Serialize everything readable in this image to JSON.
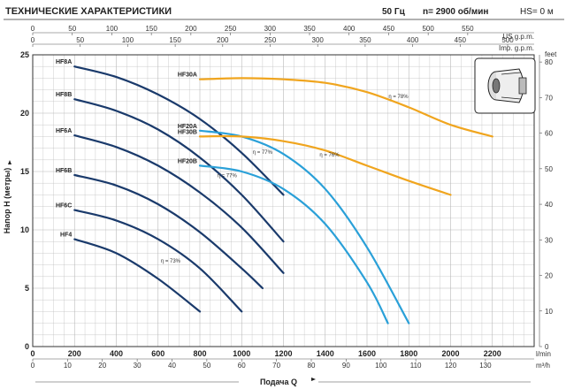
{
  "header": {
    "title": "ТЕХНИЧЕСКИЕ ХАРАКТЕРИСТИКИ",
    "frequency": "50 Гц",
    "speed": "n= 2900 об/мин",
    "hs": "HS= 0 м"
  },
  "colors": {
    "hf_series": "#1a3a6b",
    "hf20_series": "#2aa0d8",
    "hf30_series": "#f0a51e",
    "grid": "#b8b8b8",
    "header_rule": "#666666"
  },
  "chart_data": {
    "type": "line",
    "xlabel": "Подача Q",
    "ylabel": "Напор H (метры)",
    "x_unit_main": "l/min",
    "x_unit_m3h": "m³/h",
    "x_unit_us": "US g.p.m.",
    "x_unit_imp": "Imp. g.p.m.",
    "y_unit_right": "feet",
    "xlim": [
      0,
      2400
    ],
    "ylim": [
      0,
      25
    ],
    "grid": true,
    "x_ticks_lmin": [
      0,
      200,
      400,
      600,
      800,
      1000,
      1200,
      1400,
      1600,
      1800,
      2000,
      2200
    ],
    "x_ticks_m3h": [
      0,
      10,
      20,
      30,
      40,
      50,
      60,
      70,
      80,
      90,
      100,
      110,
      120,
      130
    ],
    "x_ticks_us": [
      0,
      50,
      100,
      150,
      200,
      250,
      300,
      350,
      400,
      450,
      500,
      550
    ],
    "x_ticks_imp": [
      0,
      50,
      100,
      150,
      200,
      250,
      300,
      350,
      400,
      450,
      500
    ],
    "y_ticks_m": [
      0,
      5,
      10,
      15,
      20,
      25
    ],
    "y_ticks_ft": [
      0,
      10,
      20,
      30,
      40,
      50,
      60,
      70,
      80
    ],
    "series": [
      {
        "name": "HF8A",
        "color_key": "hf_series",
        "x": [
          200,
          400,
          600,
          800,
          1000,
          1200
        ],
        "y": [
          24,
          23.1,
          21.6,
          19.5,
          16.6,
          13
        ]
      },
      {
        "name": "HF8B",
        "color_key": "hf_series",
        "x": [
          200,
          400,
          600,
          800,
          1000,
          1200
        ],
        "y": [
          21.2,
          20.2,
          18.6,
          16.2,
          13,
          9
        ]
      },
      {
        "name": "HF6A",
        "color_key": "hf_series",
        "x": [
          200,
          400,
          600,
          800,
          1000,
          1200
        ],
        "y": [
          18.1,
          17.1,
          15.5,
          13.2,
          10.2,
          6.3
        ]
      },
      {
        "name": "HF6B",
        "color_key": "hf_series",
        "x": [
          200,
          400,
          600,
          800,
          1000,
          1100
        ],
        "y": [
          14.7,
          13.8,
          12.2,
          9.8,
          6.7,
          5
        ]
      },
      {
        "name": "HF6C",
        "color_key": "hf_series",
        "x": [
          200,
          400,
          600,
          800,
          1000
        ],
        "y": [
          11.7,
          10.8,
          9.2,
          6.7,
          3
        ]
      },
      {
        "name": "HF4",
        "color_key": "hf_series",
        "x": [
          200,
          400,
          600,
          800
        ],
        "y": [
          9.2,
          8,
          5.8,
          3
        ]
      },
      {
        "name": "HF20A",
        "color_key": "hf20_series",
        "x": [
          800,
          1000,
          1200,
          1400,
          1600,
          1800
        ],
        "y": [
          18.5,
          18,
          16.5,
          13.5,
          8.5,
          2
        ]
      },
      {
        "name": "HF20B",
        "color_key": "hf20_series",
        "x": [
          800,
          1000,
          1200,
          1400,
          1600,
          1700
        ],
        "y": [
          15.5,
          15,
          13.5,
          10.5,
          5.5,
          2
        ]
      },
      {
        "name": "HF30A",
        "color_key": "hf30_series",
        "x": [
          800,
          1000,
          1200,
          1400,
          1600,
          1800,
          2000,
          2200
        ],
        "y": [
          22.9,
          23,
          22.9,
          22.6,
          21.8,
          20.5,
          19,
          18
        ]
      },
      {
        "name": "HF30B",
        "color_key": "hf30_series",
        "x": [
          800,
          1000,
          1200,
          1400,
          1600,
          1800,
          2000
        ],
        "y": [
          18,
          18,
          17.6,
          16.8,
          15.5,
          14.2,
          13
        ]
      }
    ],
    "annotations": [
      {
        "text": "η = 78%",
        "x": 1750,
        "y": 21.3
      },
      {
        "text": "η = 77%",
        "x": 1100,
        "y": 16.5
      },
      {
        "text": "η = 76%",
        "x": 1420,
        "y": 16.3
      },
      {
        "text": "η = 77%",
        "x": 930,
        "y": 14.5
      },
      {
        "text": "η = 73%",
        "x": 660,
        "y": 7.2
      }
    ]
  }
}
